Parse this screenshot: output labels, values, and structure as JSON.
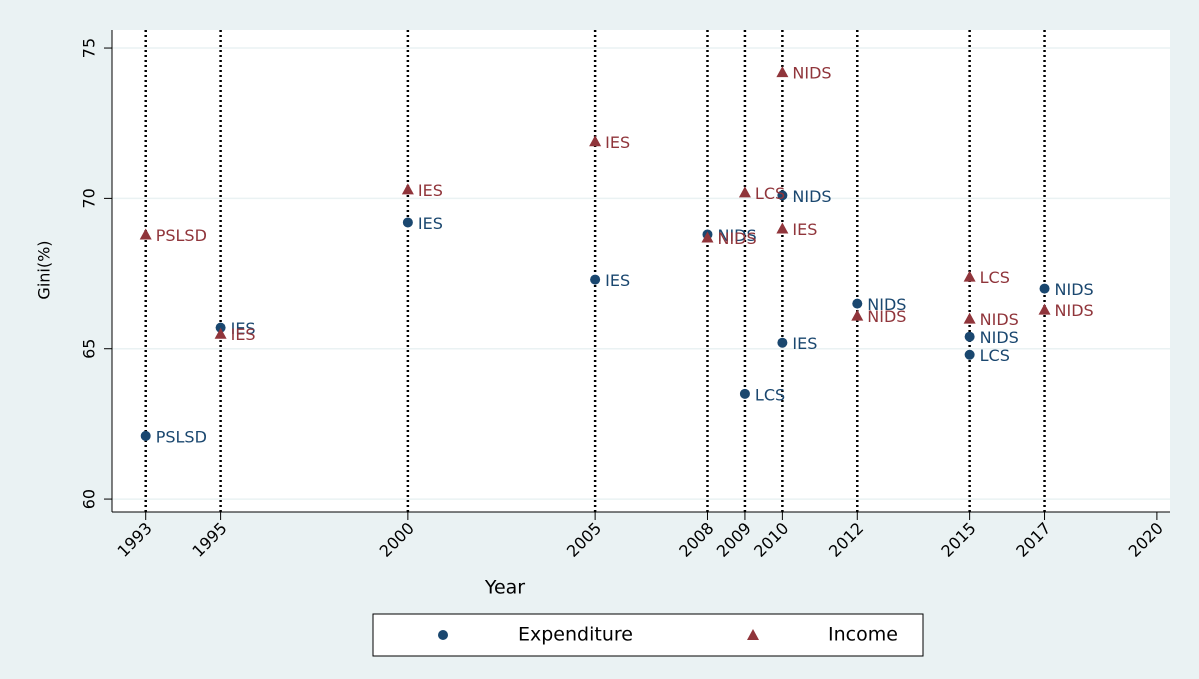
{
  "chart_data": {
    "type": "scatter",
    "x_label": "Year",
    "y_label": "Gini(%)",
    "xlim": [
      1992.1,
      2020.35
    ],
    "ylim": [
      59.57,
      75.6
    ],
    "xticks": [
      1993,
      1995,
      2000,
      2005,
      2008,
      2009,
      2010,
      2012,
      2015,
      2017,
      2020
    ],
    "yticks": [
      60,
      65,
      70,
      75
    ],
    "xlines": [
      1993,
      1995,
      2000,
      2005,
      2008,
      2009,
      2010,
      2012,
      2015,
      2017
    ],
    "grid": true,
    "legend": "bottom",
    "series": [
      {
        "name": "Expenditure",
        "color": "#1a476f",
        "marker": "circle",
        "x": [
          1993,
          1995,
          2000,
          2005,
          2008,
          2009,
          2010,
          2010,
          2012,
          2015,
          2015,
          2017
        ],
        "values": [
          62.1,
          65.7,
          69.2,
          67.3,
          68.8,
          63.5,
          70.1,
          65.2,
          66.5,
          65.4,
          64.8,
          67.0
        ],
        "point_labels": [
          "PSLSD",
          "IES",
          "IES",
          "IES",
          "NIDS",
          "LCS",
          "NIDS",
          "IES",
          "NIDS",
          "NIDS",
          "LCS",
          "NIDS"
        ]
      },
      {
        "name": "Income",
        "color": "#90353b",
        "marker": "triangle",
        "x": [
          1993,
          1995,
          2000,
          2005,
          2008,
          2009,
          2010,
          2010,
          2012,
          2015,
          2015,
          2017
        ],
        "values": [
          68.8,
          65.5,
          70.3,
          71.9,
          68.7,
          70.2,
          74.2,
          69.0,
          66.1,
          67.4,
          66.0,
          66.3
        ],
        "point_labels": [
          "PSLSD",
          "IES",
          "IES",
          "IES",
          "NIDS",
          "LCS",
          "NIDS",
          "IES",
          "NIDS",
          "LCS",
          "NIDS",
          "NIDS"
        ]
      }
    ]
  }
}
